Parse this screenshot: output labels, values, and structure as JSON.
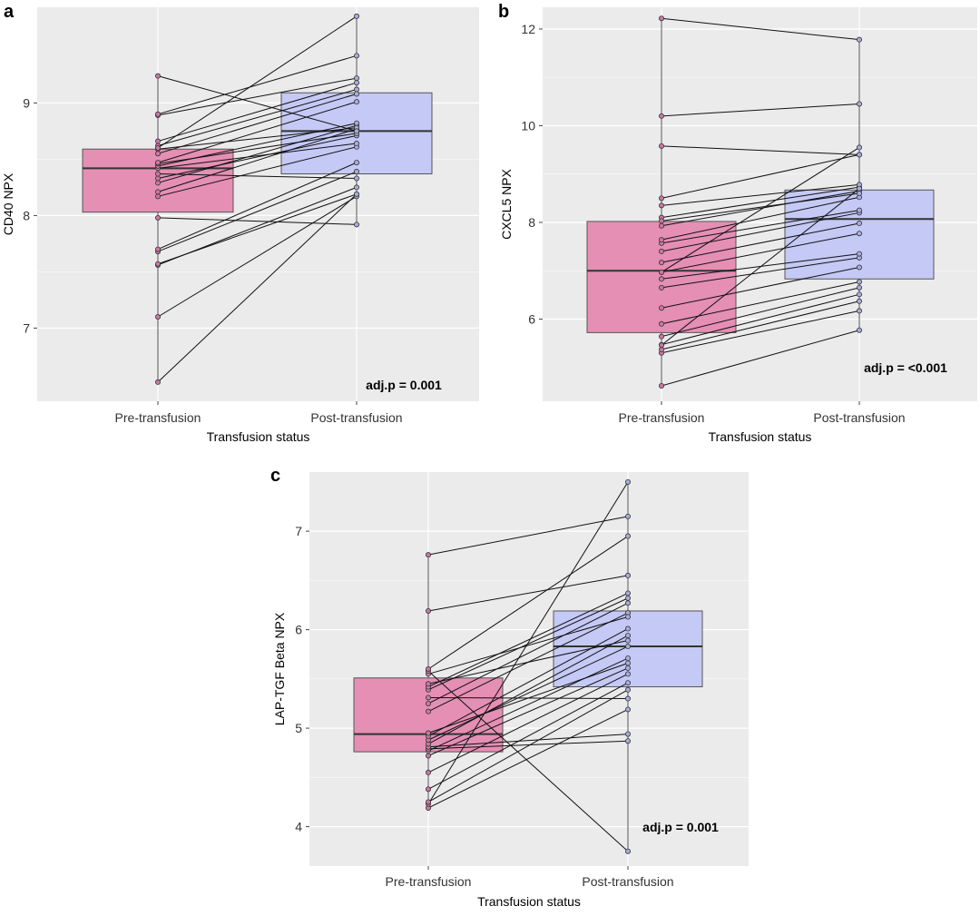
{
  "chart_data": [
    {
      "panel": "a",
      "type": "box",
      "xlabel": "Transfusion status",
      "ylabel": "CD40 NPX",
      "categories": [
        "Pre-transfusion",
        "Post-transfusion"
      ],
      "ylim": [
        6.35,
        9.85
      ],
      "yticks": [
        7,
        8,
        9
      ],
      "grid": true,
      "legend": "none",
      "annotation": "adj.p = 0.001",
      "colors": {
        "pre": "#e58fb4",
        "post": "#c5c9f5",
        "median": "#333333",
        "line": "#111111",
        "panel_bg": "#ebebeb",
        "grid": "#ffffff"
      },
      "boxes": [
        {
          "category": "Pre-transfusion",
          "q1": 8.03,
          "median": 8.42,
          "q3": 8.59,
          "whisker_low": 6.52,
          "whisker_high": 9.24
        },
        {
          "category": "Post-transfusion",
          "q1": 8.37,
          "median": 8.75,
          "q3": 9.09,
          "whisker_low": 7.92,
          "whisker_high": 9.77
        }
      ],
      "pairs": [
        [
          6.52,
          8.19
        ],
        [
          7.1,
          8.17
        ],
        [
          7.56,
          8.25
        ],
        [
          7.57,
          8.19
        ],
        [
          7.68,
          8.39
        ],
        [
          7.7,
          8.47
        ],
        [
          7.98,
          7.92
        ],
        [
          8.17,
          8.61
        ],
        [
          8.21,
          8.77
        ],
        [
          8.29,
          8.8
        ],
        [
          8.33,
          8.71
        ],
        [
          8.37,
          8.33
        ],
        [
          8.42,
          8.64
        ],
        [
          8.44,
          8.82
        ],
        [
          8.46,
          8.73
        ],
        [
          8.47,
          9.01
        ],
        [
          8.59,
          8.78
        ],
        [
          8.62,
          9.12
        ],
        [
          8.66,
          9.18
        ],
        [
          8.89,
          9.22
        ],
        [
          8.9,
          9.42
        ],
        [
          9.24,
          8.75
        ],
        [
          8.6,
          9.77
        ],
        [
          8.55,
          9.08
        ]
      ]
    },
    {
      "panel": "b",
      "type": "box",
      "xlabel": "Transfusion status",
      "ylabel": "CXCL5 NPX",
      "categories": [
        "Pre-transfusion",
        "Post-transfusion"
      ],
      "ylim": [
        4.3,
        12.45
      ],
      "yticks": [
        6,
        8,
        10,
        12
      ],
      "grid": true,
      "legend": "none",
      "annotation": "adj.p = <0.001",
      "colors": {
        "pre": "#e58fb4",
        "post": "#c5c9f5",
        "median": "#333333",
        "line": "#111111",
        "panel_bg": "#ebebeb",
        "grid": "#ffffff"
      },
      "boxes": [
        {
          "category": "Pre-transfusion",
          "q1": 5.72,
          "median": 7.0,
          "q3": 8.02,
          "whisker_low": 4.62,
          "whisker_high": 12.22
        },
        {
          "category": "Post-transfusion",
          "q1": 6.83,
          "median": 8.07,
          "q3": 8.67,
          "whisker_low": 5.77,
          "whisker_high": 11.78
        }
      ],
      "pairs": [
        [
          4.62,
          5.77
        ],
        [
          5.3,
          6.17
        ],
        [
          5.37,
          6.37
        ],
        [
          5.47,
          6.51
        ],
        [
          5.64,
          6.65
        ],
        [
          5.9,
          6.77
        ],
        [
          6.23,
          7.07
        ],
        [
          6.65,
          7.27
        ],
        [
          6.83,
          7.35
        ],
        [
          6.97,
          7.77
        ],
        [
          7.17,
          7.98
        ],
        [
          7.4,
          8.2
        ],
        [
          7.57,
          8.25
        ],
        [
          7.64,
          8.52
        ],
        [
          7.93,
          8.65
        ],
        [
          8.1,
          8.73
        ],
        [
          8.35,
          8.78
        ],
        [
          8.5,
          9.4
        ],
        [
          9.58,
          9.4
        ],
        [
          10.2,
          10.45
        ],
        [
          12.22,
          11.78
        ],
        [
          6.97,
          9.55
        ],
        [
          5.46,
          8.7
        ],
        [
          8.03,
          8.6
        ]
      ]
    },
    {
      "panel": "c",
      "type": "box",
      "xlabel": "Transfusion status",
      "ylabel": "LAP-TGF Beta NPX",
      "categories": [
        "Pre-transfusion",
        "Post-transfusion"
      ],
      "ylim": [
        3.6,
        7.6
      ],
      "yticks": [
        4,
        5,
        6,
        7
      ],
      "grid": true,
      "legend": "none",
      "annotation": "adj.p = 0.001",
      "colors": {
        "pre": "#e58fb4",
        "post": "#c5c9f5",
        "median": "#333333",
        "line": "#111111",
        "panel_bg": "#ebebeb",
        "grid": "#ffffff"
      },
      "boxes": [
        {
          "category": "Pre-transfusion",
          "q1": 4.76,
          "median": 4.94,
          "q3": 5.51,
          "whisker_low": 4.19,
          "whisker_high": 6.76
        },
        {
          "category": "Post-transfusion",
          "q1": 5.42,
          "median": 5.83,
          "q3": 6.19,
          "whisker_low": 3.75,
          "whisker_high": 7.5
        }
      ],
      "pairs": [
        [
          4.19,
          5.19
        ],
        [
          4.23,
          7.5
        ],
        [
          4.25,
          5.39
        ],
        [
          4.38,
          5.46
        ],
        [
          4.55,
          5.55
        ],
        [
          4.72,
          5.61
        ],
        [
          4.77,
          5.71
        ],
        [
          4.79,
          4.87
        ],
        [
          4.81,
          4.94
        ],
        [
          4.84,
          5.94
        ],
        [
          4.88,
          5.83
        ],
        [
          4.92,
          6.01
        ],
        [
          4.95,
          5.66
        ],
        [
          5.17,
          6.17
        ],
        [
          5.25,
          6.27
        ],
        [
          5.31,
          5.3
        ],
        [
          5.39,
          6.32
        ],
        [
          5.42,
          6.37
        ],
        [
          5.45,
          5.89
        ],
        [
          5.55,
          6.13
        ],
        [
          5.58,
          3.75
        ],
        [
          5.6,
          6.95
        ],
        [
          6.19,
          6.55
        ],
        [
          6.76,
          7.15
        ]
      ]
    }
  ]
}
